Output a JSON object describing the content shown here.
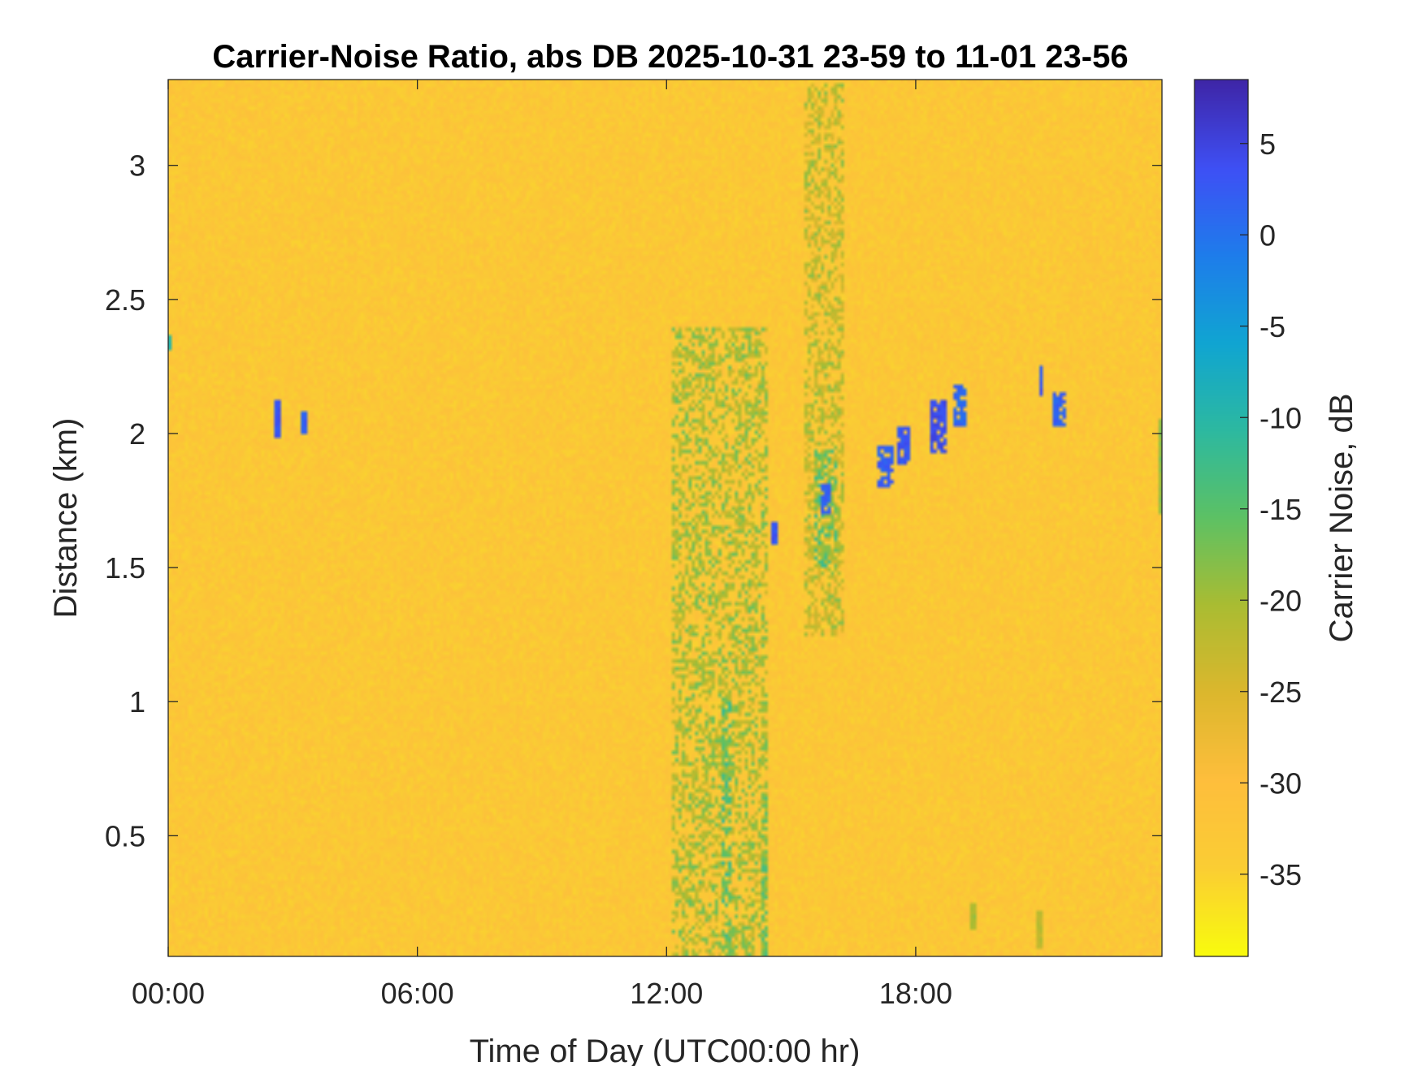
{
  "chart_data": {
    "type": "heatmap",
    "title": "Carrier-Noise Ratio, abs DB 2025-10-31 23-59 to 11-01 23-56",
    "xlabel": "Time of Day (UTC00:00 hr)",
    "ylabel": "Distance (km)",
    "colorbar_label": "Carrier Noise, dB",
    "x_unit": "hours",
    "xlim": [
      0,
      23.93
    ],
    "ylim": [
      0.05,
      3.32
    ],
    "clim": [
      -39.5,
      8.5
    ],
    "x_ticks": [
      0,
      6,
      12,
      18
    ],
    "x_tick_labels": [
      "00:00",
      "06:00",
      "12:00",
      "18:00"
    ],
    "y_ticks": [
      0.5,
      1,
      1.5,
      2,
      2.5,
      3
    ],
    "y_tick_labels": [
      "0.5",
      "1",
      "1.5",
      "2",
      "2.5",
      "3"
    ],
    "colorbar_ticks": [
      5,
      0,
      -5,
      -10,
      -15,
      -20,
      -25,
      -30,
      -35
    ],
    "colorbar_tick_labels": [
      "5",
      "0",
      "-5",
      "-10",
      "-15",
      "-20",
      "-25",
      "-30",
      "-35"
    ],
    "colormap": "parula",
    "background_value_db": -33,
    "features": [
      {
        "kind": "streak",
        "x": 2.65,
        "y0": 1.98,
        "y1": 2.12,
        "value_db": 3
      },
      {
        "kind": "streak",
        "x": 3.25,
        "y0": 2.0,
        "y1": 2.08,
        "value_db": 2
      },
      {
        "kind": "streak",
        "x": 0.02,
        "y0": 2.31,
        "y1": 2.37,
        "value_db": -10
      },
      {
        "kind": "streak",
        "x": 14.6,
        "y0": 1.59,
        "y1": 1.67,
        "value_db": 3
      },
      {
        "kind": "band",
        "x0": 12.1,
        "x1": 14.4,
        "y0": 0.05,
        "y1": 2.4,
        "value_db": -20
      },
      {
        "kind": "band",
        "x0": 13.3,
        "x1": 13.6,
        "y0": 0.05,
        "y1": 1.0,
        "value_db": -15
      },
      {
        "kind": "band",
        "x0": 14.25,
        "x1": 14.4,
        "y0": 0.05,
        "y1": 0.7,
        "value_db": -17
      },
      {
        "kind": "band",
        "x0": 15.3,
        "x1": 16.3,
        "y0": 1.25,
        "y1": 3.3,
        "value_db": -22
      },
      {
        "kind": "band",
        "x0": 15.55,
        "x1": 16.15,
        "y0": 1.5,
        "y1": 1.95,
        "value_db": -16
      },
      {
        "kind": "blob",
        "x0": 15.75,
        "x1": 15.95,
        "y0": 1.7,
        "y1": 1.82,
        "value_db": 2
      },
      {
        "kind": "blob",
        "x0": 17.1,
        "x1": 17.5,
        "y0": 1.8,
        "y1": 1.95,
        "value_db": 2
      },
      {
        "kind": "blob",
        "x0": 17.55,
        "x1": 17.9,
        "y0": 1.88,
        "y1": 2.03,
        "value_db": 3
      },
      {
        "kind": "blob",
        "x0": 18.35,
        "x1": 18.75,
        "y0": 1.93,
        "y1": 2.12,
        "value_db": 4
      },
      {
        "kind": "blob",
        "x0": 18.9,
        "x1": 19.25,
        "y0": 2.03,
        "y1": 2.18,
        "value_db": 1
      },
      {
        "kind": "blob",
        "x0": 20.95,
        "x1": 21.05,
        "y0": 2.14,
        "y1": 2.25,
        "value_db": 3
      },
      {
        "kind": "blob",
        "x0": 21.3,
        "x1": 21.6,
        "y0": 2.03,
        "y1": 2.16,
        "value_db": 2
      },
      {
        "kind": "streak",
        "x": 23.9,
        "y0": 1.7,
        "y1": 2.05,
        "value_db": -18
      },
      {
        "kind": "streak",
        "x": 19.4,
        "y0": 0.15,
        "y1": 0.25,
        "value_db": -20
      },
      {
        "kind": "streak",
        "x": 21.0,
        "y0": 0.08,
        "y1": 0.22,
        "value_db": -22
      }
    ]
  }
}
